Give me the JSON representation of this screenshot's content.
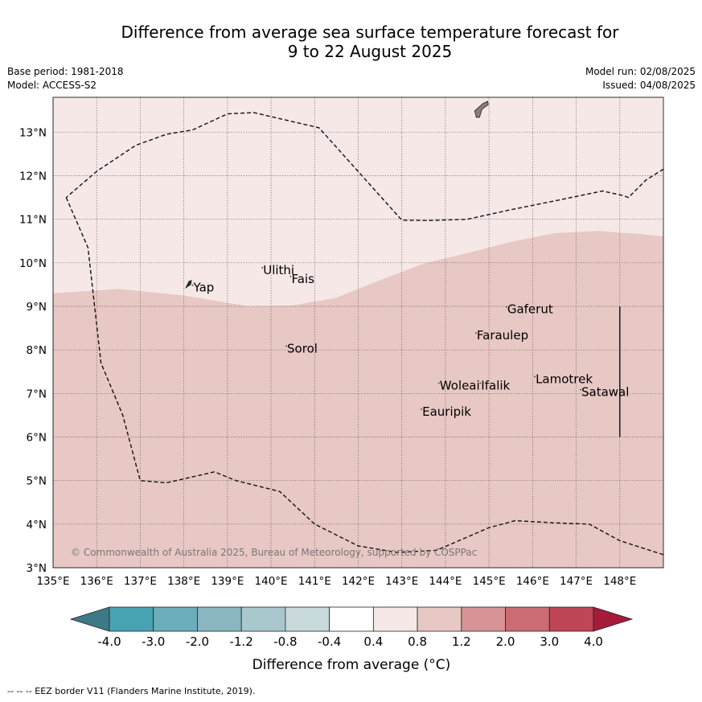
{
  "title": {
    "line1": "Difference from average sea surface temperature forecast for",
    "line2": "9 to 22 August 2025"
  },
  "meta": {
    "base_period": "Base period: 1981-2018",
    "model": "Model: ACCESS-S2",
    "model_run": "Model run: 02/08/2025",
    "issued": "Issued: 04/08/2025"
  },
  "map": {
    "lon_range": [
      135,
      149
    ],
    "lat_range": [
      3,
      13.8
    ],
    "lon_ticks": [
      {
        "value": 135,
        "label": "135°E"
      },
      {
        "value": 136,
        "label": "136°E"
      },
      {
        "value": 137,
        "label": "137°E"
      },
      {
        "value": 138,
        "label": "138°E"
      },
      {
        "value": 139,
        "label": "139°E"
      },
      {
        "value": 140,
        "label": "140°E"
      },
      {
        "value": 141,
        "label": "141°E"
      },
      {
        "value": 142,
        "label": "142°E"
      },
      {
        "value": 143,
        "label": "143°E"
      },
      {
        "value": 144,
        "label": "144°E"
      },
      {
        "value": 145,
        "label": "145°E"
      },
      {
        "value": 146,
        "label": "146°E"
      },
      {
        "value": 147,
        "label": "147°E"
      },
      {
        "value": 148,
        "label": "148°E"
      }
    ],
    "lat_ticks": [
      {
        "value": 3,
        "label": "3°N"
      },
      {
        "value": 4,
        "label": "4°N"
      },
      {
        "value": 5,
        "label": "5°N"
      },
      {
        "value": 6,
        "label": "6°N"
      },
      {
        "value": 7,
        "label": "7°N"
      },
      {
        "value": 8,
        "label": "8°N"
      },
      {
        "value": 9,
        "label": "9°N"
      },
      {
        "value": 10,
        "label": "10°N"
      },
      {
        "value": 11,
        "label": "11°N"
      },
      {
        "value": 12,
        "label": "12°N"
      },
      {
        "value": 13,
        "label": "13°N"
      }
    ],
    "zones": [
      {
        "range": "0.4 to 0.8",
        "color": "#f5e8e7"
      },
      {
        "range": "0.8 to 1.2",
        "color": "#e8c8c4"
      }
    ],
    "zone_boundary": [
      [
        135,
        9.3
      ],
      [
        136.5,
        9.4
      ],
      [
        138,
        9.25
      ],
      [
        139.5,
        9.0
      ],
      [
        140.5,
        9.02
      ],
      [
        141.5,
        9.2
      ],
      [
        142.5,
        9.6
      ],
      [
        143.5,
        9.98
      ],
      [
        144.5,
        10.22
      ],
      [
        145.5,
        10.48
      ],
      [
        146.5,
        10.68
      ],
      [
        147.5,
        10.73
      ],
      [
        148.5,
        10.66
      ],
      [
        149,
        10.6
      ]
    ],
    "eez_north": [
      [
        149,
        12.15
      ],
      [
        148.6,
        11.9
      ],
      [
        148.2,
        11.5
      ],
      [
        148.05,
        11.55
      ],
      [
        147.6,
        11.65
      ],
      [
        146.5,
        11.42
      ],
      [
        145.5,
        11.22
      ],
      [
        144.5,
        11.0
      ],
      [
        143.6,
        10.97
      ],
      [
        143.0,
        10.98
      ],
      [
        141.1,
        13.1
      ],
      [
        139.6,
        13.45
      ],
      [
        139.0,
        13.42
      ],
      [
        138.2,
        13.05
      ],
      [
        137.6,
        12.95
      ],
      [
        136.9,
        12.7
      ],
      [
        136.0,
        12.1
      ],
      [
        135.3,
        11.5
      ]
    ],
    "eez_west": [
      [
        135.3,
        11.5
      ],
      [
        135.8,
        10.35
      ],
      [
        136.1,
        7.7
      ],
      [
        136.6,
        6.5
      ],
      [
        137.0,
        5.0
      ],
      [
        137.6,
        4.95
      ],
      [
        138.7,
        5.2
      ],
      [
        139.2,
        5.0
      ],
      [
        140.2,
        4.75
      ],
      [
        141.0,
        4.0
      ],
      [
        142.0,
        3.5
      ],
      [
        142.9,
        3.35
      ],
      [
        143.8,
        3.4
      ],
      [
        145.0,
        3.92
      ],
      [
        145.6,
        4.08
      ],
      [
        146.5,
        4.03
      ],
      [
        147.3,
        4.0
      ],
      [
        148.0,
        3.62
      ],
      [
        149,
        3.3
      ]
    ],
    "boundary_line": {
      "lon": 148,
      "lat_from": 6,
      "lat_to": 9
    },
    "places": [
      {
        "name": "Ulithi",
        "lon": 139.8,
        "lat": 9.85
      },
      {
        "name": "Fais",
        "lon": 140.45,
        "lat": 9.65
      },
      {
        "name": "Yap",
        "lon": 138.2,
        "lat": 9.45
      },
      {
        "name": "Gaferut",
        "lon": 145.4,
        "lat": 8.95
      },
      {
        "name": "Faraulep",
        "lon": 144.7,
        "lat": 8.35
      },
      {
        "name": "Sorol",
        "lon": 140.35,
        "lat": 8.05
      },
      {
        "name": "Lamotrek",
        "lon": 146.05,
        "lat": 7.35
      },
      {
        "name": "Woleai",
        "lon": 143.85,
        "lat": 7.2
      },
      {
        "name": "Ifalik",
        "lon": 144.8,
        "lat": 7.2
      },
      {
        "name": "Satawal",
        "lon": 147.1,
        "lat": 7.05
      },
      {
        "name": "Eauripik",
        "lon": 143.45,
        "lat": 6.6
      }
    ],
    "land": [
      {
        "name": "Guam",
        "lon": 144.8,
        "lat": 13.45
      },
      {
        "name": "Yap-island",
        "lon": 138.1,
        "lat": 9.52
      }
    ],
    "copyright": "© Commonwealth of Australia 2025, Bureau of Meteorology, supported by COSPPac"
  },
  "colorbar": {
    "colors": [
      "#3e7a86",
      "#47a3b2",
      "#6aaebc",
      "#89b6c1",
      "#a9c8cd",
      "#c9dadd",
      "#ffffff",
      "#f5e8e7",
      "#e8c8c4",
      "#d79395",
      "#cb6b73",
      "#bf4656",
      "#a51c3a"
    ],
    "labels": [
      "-4.0",
      "-3.0",
      "-2.0",
      "-1.2",
      "-0.8",
      "-0.4",
      "0.4",
      "0.8",
      "1.2",
      "2.0",
      "3.0",
      "4.0"
    ],
    "title": "Difference from average (°C)"
  },
  "footer": "--  --  -- EEZ border V11 (Flanders Marine Institute, 2019)."
}
